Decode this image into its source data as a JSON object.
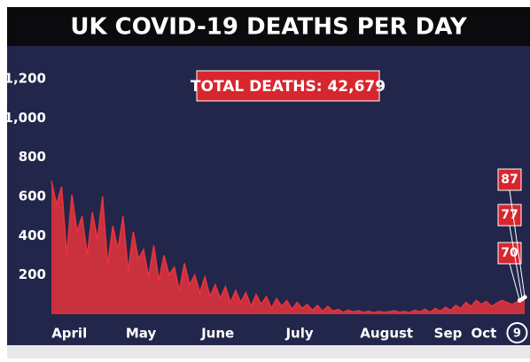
{
  "chart_data": {
    "type": "area",
    "title": "UK COVID-19 DEATHS PER DAY",
    "annotation": "TOTAL DEATHS: 42,679",
    "color": "#e8343c",
    "x": [
      0,
      2,
      4,
      6,
      8,
      10,
      12,
      14,
      16,
      18,
      20,
      22,
      24,
      26,
      28,
      30,
      32,
      34,
      36,
      38,
      40,
      42,
      44,
      46,
      48,
      50,
      52,
      54,
      56,
      58,
      60,
      62,
      64,
      66,
      68,
      70,
      72,
      74,
      76,
      78,
      80,
      82,
      84,
      86,
      88,
      90,
      92,
      94,
      96,
      98,
      100,
      102,
      104,
      106,
      108,
      110,
      112,
      114,
      116,
      118,
      120,
      122,
      124,
      126,
      128,
      130,
      132,
      134,
      136,
      138,
      140,
      142,
      144,
      146,
      148,
      150,
      152,
      154,
      156,
      158,
      160,
      162,
      164,
      166,
      168,
      170,
      172,
      174,
      176,
      178,
      180,
      183,
      184,
      185
    ],
    "values": [
      680,
      560,
      650,
      300,
      610,
      420,
      500,
      300,
      520,
      380,
      600,
      250,
      450,
      330,
      500,
      220,
      420,
      280,
      330,
      190,
      350,
      170,
      300,
      200,
      240,
      120,
      260,
      150,
      200,
      110,
      190,
      90,
      150,
      80,
      140,
      60,
      120,
      60,
      110,
      40,
      100,
      50,
      90,
      30,
      80,
      40,
      70,
      25,
      60,
      30,
      50,
      20,
      45,
      15,
      40,
      15,
      25,
      10,
      20,
      12,
      18,
      10,
      15,
      8,
      14,
      10,
      12,
      18,
      10,
      14,
      8,
      20,
      12,
      25,
      10,
      30,
      15,
      35,
      20,
      45,
      30,
      60,
      40,
      70,
      50,
      65,
      40,
      55,
      70,
      60,
      50,
      70,
      77,
      87
    ],
    "xlim": [
      0,
      186
    ],
    "xticks": [
      {
        "value": 7,
        "label": "April"
      },
      {
        "value": 35,
        "label": "May"
      },
      {
        "value": 65,
        "label": "June"
      },
      {
        "value": 97,
        "label": "July"
      },
      {
        "value": 131,
        "label": "August"
      },
      {
        "value": 155,
        "label": "Sep"
      },
      {
        "value": 169,
        "label": "Oct"
      },
      {
        "value": 182,
        "label": "9"
      }
    ],
    "ylim": [
      0,
      1200
    ],
    "yticks": [
      200,
      400,
      600,
      800,
      {
        "value": 1000,
        "label": "1,000"
      },
      {
        "value": 1200,
        "label": "1,200"
      }
    ],
    "labeled_points": [
      91,
      92,
      93
    ]
  }
}
